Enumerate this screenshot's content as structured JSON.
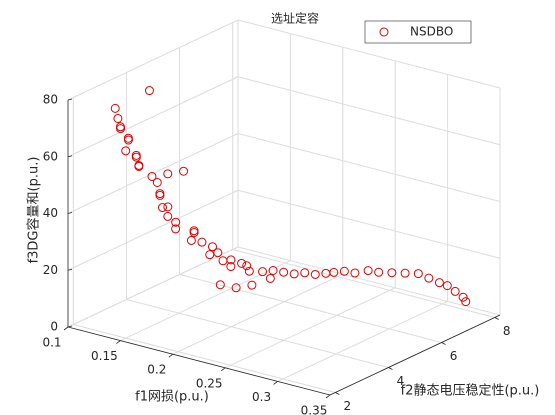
{
  "chart_data": {
    "type": "scatter3d",
    "title": "选址定容",
    "xlabel": "f1网损(p.u.)",
    "ylabel": "f2静态电压稳定性(p.u.)",
    "zlabel": "f3DG容量和(p.u.)",
    "xlim": [
      0.1,
      0.35
    ],
    "xticks": [
      0.1,
      0.15,
      0.2,
      0.25,
      0.3,
      0.35
    ],
    "ylim": [
      1.8,
      8.2
    ],
    "yticks": [
      2,
      4,
      6,
      8
    ],
    "zlim": [
      0,
      80
    ],
    "zticks": [
      0,
      20,
      40,
      60,
      80
    ],
    "grid": true,
    "legend": "north-east",
    "series": [
      {
        "name": "NSDBO",
        "color": "#e00000",
        "marker": "circle",
        "x": [
          0.14,
          0.16,
          0.14,
          0.145,
          0.14,
          0.15,
          0.145,
          0.15,
          0.155,
          0.15,
          0.16,
          0.155,
          0.17,
          0.19,
          0.18,
          0.17,
          0.175,
          0.17,
          0.18,
          0.175,
          0.18,
          0.185,
          0.19,
          0.2,
          0.195,
          0.2,
          0.205,
          0.21,
          0.215,
          0.21,
          0.22,
          0.22,
          0.225,
          0.23,
          0.22,
          0.235,
          0.24,
          0.245,
          0.25,
          0.25,
          0.255,
          0.26,
          0.265,
          0.27,
          0.27,
          0.275,
          0.28,
          0.285,
          0.29,
          0.295,
          0.3,
          0.305,
          0.31,
          0.315,
          0.32,
          0.325,
          0.33,
          0.33,
          0.22,
          0.23,
          0.24
        ],
        "y": [
          2.0,
          2.5,
          2.1,
          2.0,
          2.2,
          2.1,
          2.3,
          2.0,
          2.2,
          2.4,
          2.1,
          2.3,
          2.2,
          2.6,
          2.4,
          2.4,
          2.3,
          2.5,
          2.2,
          2.6,
          2.4,
          2.5,
          2.3,
          2.6,
          2.8,
          2.5,
          2.7,
          2.9,
          2.6,
          3.1,
          2.9,
          3.2,
          3.0,
          3.4,
          3.6,
          3.3,
          3.6,
          3.8,
          3.5,
          4.0,
          4.2,
          4.4,
          4.6,
          4.8,
          5.1,
          5.3,
          5.5,
          5.8,
          6.0,
          6.3,
          6.6,
          6.9,
          7.1,
          7.3,
          7.4,
          7.5,
          7.6,
          7.7,
          2.8,
          3.0,
          3.2
        ],
        "z": [
          80,
          86,
          76,
          74,
          72,
          70,
          68,
          66,
          64,
          62,
          61,
          60,
          58,
          60,
          59,
          55,
          52,
          50,
          48,
          46,
          44,
          42,
          41,
          40,
          38,
          37,
          36,
          34,
          33,
          31,
          30,
          29,
          28,
          27,
          26,
          26,
          25,
          25,
          24,
          24,
          23,
          23,
          22,
          22,
          21,
          21,
          20,
          20,
          19,
          18,
          17,
          16,
          14,
          12,
          11,
          9,
          7,
          5,
          22,
          21,
          22
        ]
      }
    ]
  }
}
